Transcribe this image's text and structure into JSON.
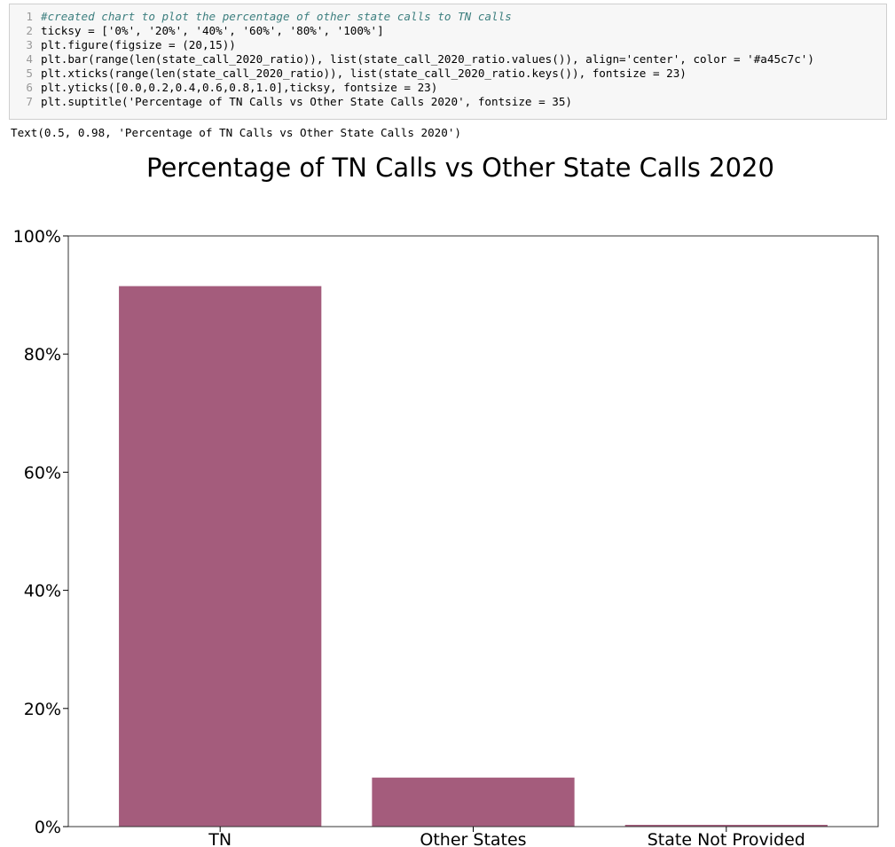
{
  "notebook": {
    "code_lines": [
      {
        "n": "1",
        "text": "#created chart to plot the percentage of other state calls to TN calls",
        "color": "#3d7f7f",
        "italic": true
      },
      {
        "n": "2",
        "text": "ticksy = ['0%', '20%', '40%', '60%', '80%', '100%']"
      },
      {
        "n": "3",
        "text": "plt.figure(figsize = (20,15))"
      },
      {
        "n": "4",
        "text": "plt.bar(range(len(state_call_2020_ratio)), list(state_call_2020_ratio.values()), align='center', color = '#a45c7c')"
      },
      {
        "n": "5",
        "text": "plt.xticks(range(len(state_call_2020_ratio)), list(state_call_2020_ratio.keys()), fontsize = 23)"
      },
      {
        "n": "6",
        "text": "plt.yticks([0.0,0.2,0.4,0.6,0.8,1.0],ticksy, fontsize = 23)"
      },
      {
        "n": "7",
        "text": "plt.suptitle('Percentage of TN Calls vs Other State Calls 2020', fontsize = 35)"
      }
    ],
    "output_text": "Text(0.5, 0.98, 'Percentage of TN Calls vs Other State Calls 2020')"
  },
  "chart_data": {
    "type": "bar",
    "title": "Percentage of TN Calls vs Other State Calls 2020",
    "categories": [
      "TN",
      "Other States",
      "State Not Provided"
    ],
    "values": [
      0.915,
      0.083,
      0.003
    ],
    "ylim": [
      0,
      1.0
    ],
    "yticks": [
      0.0,
      0.2,
      0.4,
      0.6,
      0.8,
      1.0
    ],
    "ytick_labels": [
      "0%",
      "20%",
      "40%",
      "60%",
      "80%",
      "100%"
    ],
    "xlabel": "",
    "ylabel": "",
    "bar_color": "#a45c7c",
    "grid": false,
    "legend": "none"
  }
}
